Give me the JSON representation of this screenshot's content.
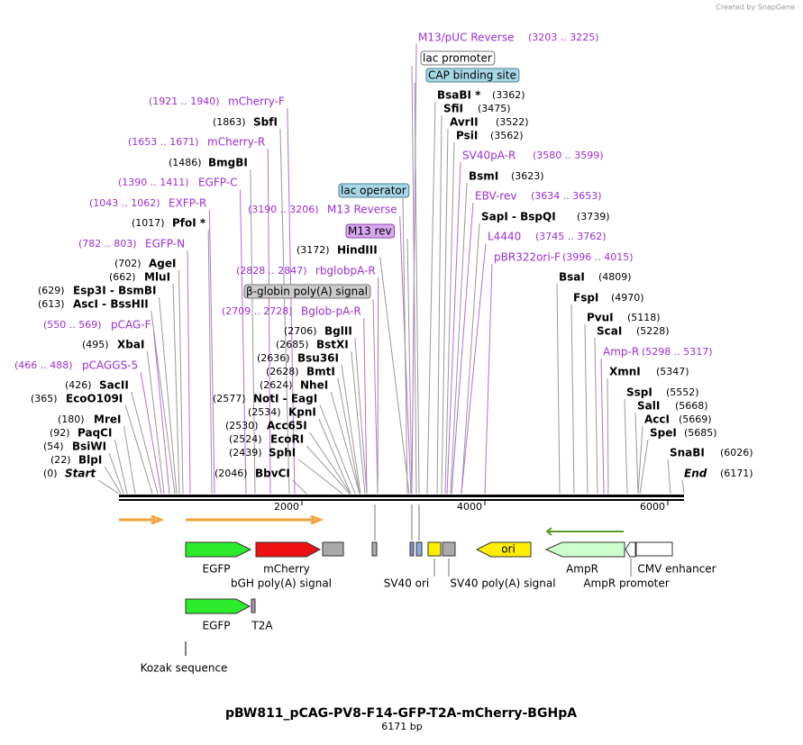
{
  "logo": "Created by SnapGene",
  "title": "pBW811_pCAG-PV8-F14-GFP-T2A-mCherry-BGHpA",
  "length": "6171 bp",
  "ruler": {
    "ticks": [
      "2000",
      "4000",
      "6000"
    ]
  },
  "sites": [
    {
      "position": "(1921 .. 1940)",
      "name": "mCherry-F"
    },
    {
      "position": "(1863)",
      "name": "SbfI"
    },
    {
      "position": "(1653 .. 1671)",
      "name": "mCherry-R"
    },
    {
      "position": "(1486)",
      "name": "BmgBI"
    },
    {
      "position": "(1390 .. 1411)",
      "name": "EGFP-C"
    },
    {
      "position": "(1043 .. 1062)",
      "name": "EXFP-R"
    },
    {
      "position": "(1017)",
      "name": "PfoI *"
    },
    {
      "position": "(782 .. 803)",
      "name": "EGFP-N"
    },
    {
      "position": "(702)",
      "name": "AgeI"
    },
    {
      "position": "(662)",
      "name": "MluI"
    },
    {
      "position": "(629)",
      "name": "Esp3I  -  BsmBI"
    },
    {
      "position": "(613)",
      "name": "AscI  -  BssHII"
    },
    {
      "position": "(550 .. 569)",
      "name": "pCAG-F"
    },
    {
      "position": "(495)",
      "name": "XbaI"
    },
    {
      "position": "(466 .. 488)",
      "name": "pCAGGS-5"
    },
    {
      "position": "(426)",
      "name": "SacII"
    },
    {
      "position": "(365)",
      "name": "EcoO109I"
    },
    {
      "position": "(180)",
      "name": "MreI"
    },
    {
      "position": "(92)",
      "name": "PaqCI"
    },
    {
      "position": "(54)",
      "name": "BsiWI"
    },
    {
      "position": "(22)",
      "name": "BlpI"
    },
    {
      "position": "(0)",
      "name": "Start"
    },
    {
      "position": "(3190 .. 3206)",
      "name": "M13 Reverse"
    },
    {
      "position": "(3172)",
      "name": "HindIII"
    },
    {
      "position": "(2828 .. 2847)",
      "name": "rbglobpA-R"
    },
    {
      "position": "(2709 .. 2728)",
      "name": "Bglob-pA-R"
    },
    {
      "position": "(2706)",
      "name": "BglII"
    },
    {
      "position": "(2685)",
      "name": "BstXI"
    },
    {
      "position": "(2636)",
      "name": "Bsu36I"
    },
    {
      "position": "(2628)",
      "name": "BmtI"
    },
    {
      "position": "(2624)",
      "name": "NheI"
    },
    {
      "position": "(2577)",
      "name": "NotI  -  EagI"
    },
    {
      "position": "(2534)",
      "name": "KpnI"
    },
    {
      "position": "(2530)",
      "name": "Acc65I"
    },
    {
      "position": "(2524)",
      "name": "EcoRI"
    },
    {
      "position": "(2439)",
      "name": "SphI"
    },
    {
      "position": "(2046)",
      "name": "BbvCI"
    },
    {
      "position": "(3203 .. 3225)",
      "name": "M13/pUC Reverse"
    },
    {
      "position": "(3362)",
      "name": "BsaBI *"
    },
    {
      "position": "(3475)",
      "name": "SfiI"
    },
    {
      "position": "(3522)",
      "name": "AvrII"
    },
    {
      "position": "(3562)",
      "name": "PsiI"
    },
    {
      "position": "(3580 .. 3599)",
      "name": "SV40pA-R"
    },
    {
      "position": "(3623)",
      "name": "BsmI"
    },
    {
      "position": "(3634 .. 3653)",
      "name": "EBV-rev"
    },
    {
      "position": "(3739)",
      "name": "SapI  -  BspQI"
    },
    {
      "position": "(3745 .. 3762)",
      "name": "L4440"
    },
    {
      "position": "(3996 .. 4015)",
      "name": "pBR322ori-F"
    },
    {
      "position": "(4809)",
      "name": "BsaI"
    },
    {
      "position": "(4970)",
      "name": "FspI"
    },
    {
      "position": "(5118)",
      "name": "PvuI"
    },
    {
      "position": "(5228)",
      "name": "ScaI"
    },
    {
      "position": "(5298 .. 5317)",
      "name": "Amp-R"
    },
    {
      "position": "(5347)",
      "name": "XmnI"
    },
    {
      "position": "(5552)",
      "name": "SspI"
    },
    {
      "position": "(5668)",
      "name": "SalI"
    },
    {
      "position": "(5669)",
      "name": "AccI"
    },
    {
      "position": "(5685)",
      "name": "SpeI"
    },
    {
      "position": "(6026)",
      "name": "SnaBI"
    },
    {
      "position": "(6171)",
      "name": "End"
    }
  ],
  "boxed_features": [
    "lac operator",
    "M13 rev",
    "β-globin poly(A) signal",
    "lac promoter",
    "CAP binding site"
  ],
  "feature_labels": [
    "EGFP",
    "mCherry",
    "bGH poly(A) signal",
    "SV40 ori",
    "SV40 poly(A) signal",
    "ori",
    "AmpR",
    "AmpR promoter",
    "CMV enhancer"
  ],
  "detail_labels": [
    "EGFP",
    "T2A",
    "Kozak sequence"
  ]
}
